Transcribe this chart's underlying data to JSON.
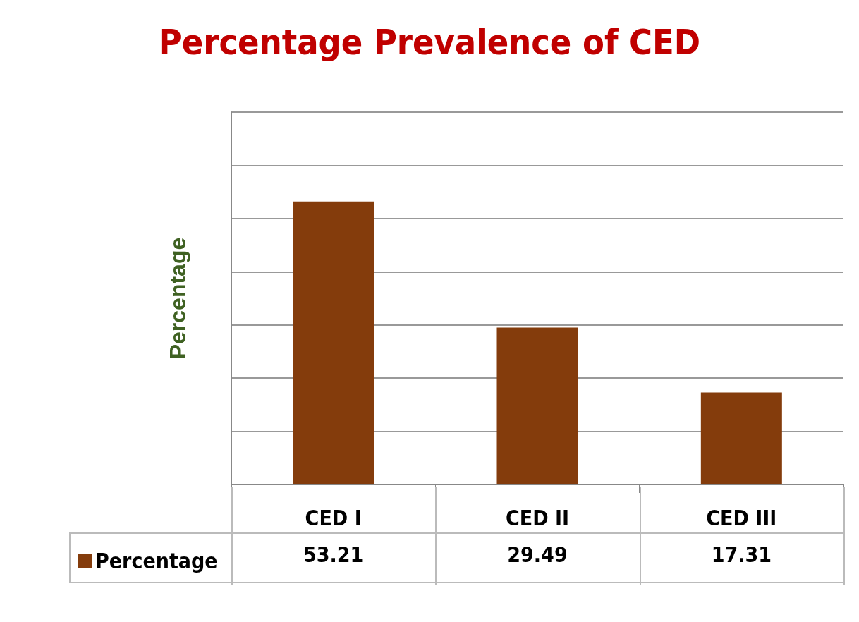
{
  "chart_data": {
    "type": "bar",
    "title": "Percentage Prevalence of CED",
    "ylabel": "Percentage",
    "categories": [
      "CED I",
      "CED II",
      "CED III"
    ],
    "series": [
      {
        "name": "Percentage",
        "color": "#843c0c",
        "values": [
          53.21,
          29.49,
          17.31
        ]
      }
    ],
    "ylim": [
      0,
      70
    ],
    "yticks": [
      {
        "value": 0,
        "label": null
      },
      {
        "value": 10,
        "label": null
      },
      {
        "value": 20,
        "label": null
      },
      {
        "value": 30,
        "label": null
      },
      {
        "value": 40,
        "label": null
      },
      {
        "value": 50,
        "label": null
      },
      {
        "value": 60,
        "label": null
      },
      {
        "value": 70,
        "label": null
      }
    ],
    "tick_labels": "x",
    "grid": "y",
    "legend": "bottom left",
    "data_labels": true
  }
}
